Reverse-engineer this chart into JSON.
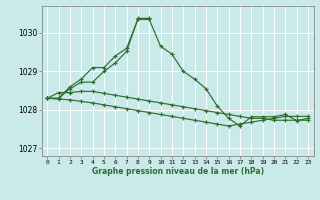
{
  "bg_color": "#caeaea",
  "grid_color": "#ffffff",
  "line_color": "#2d6e2d",
  "ylim": [
    1026.8,
    1030.7
  ],
  "xlim": [
    -0.5,
    23.5
  ],
  "yticks": [
    1027,
    1028,
    1029,
    1030
  ],
  "xticks": [
    0,
    1,
    2,
    3,
    4,
    5,
    6,
    7,
    8,
    9,
    10,
    11,
    12,
    13,
    14,
    15,
    16,
    17,
    18,
    19,
    20,
    21,
    22,
    23
  ],
  "series": [
    [
      1028.3,
      1028.3,
      1028.6,
      1028.8,
      1029.1,
      1029.1,
      1029.4,
      1029.6,
      1030.35,
      1030.35,
      1029.65,
      1029.45,
      1029.0,
      1028.8,
      1028.55,
      1028.1,
      1027.78,
      1027.58,
      1027.82,
      1027.82,
      1027.82,
      1027.88,
      1027.72,
      1027.78
    ],
    [
      1028.3,
      1028.3,
      1028.55,
      1028.72,
      1028.72,
      1029.0,
      1029.22,
      1029.52,
      1030.38,
      1030.38,
      null,
      null,
      null,
      null,
      null,
      null,
      null,
      null,
      null,
      null,
      null,
      null,
      null,
      null
    ],
    [
      1028.3,
      1028.45,
      1028.45,
      1028.48,
      1028.48,
      1028.43,
      1028.38,
      1028.33,
      1028.28,
      1028.23,
      1028.18,
      1028.13,
      1028.08,
      1028.03,
      1027.98,
      1027.93,
      1027.88,
      1027.83,
      1027.78,
      1027.78,
      1027.73,
      1027.73,
      1027.73,
      1027.73
    ],
    [
      1028.3,
      1028.28,
      1028.26,
      1028.22,
      1028.18,
      1028.13,
      1028.08,
      1028.03,
      1027.98,
      1027.93,
      1027.88,
      1027.83,
      1027.78,
      1027.73,
      1027.68,
      1027.63,
      1027.58,
      1027.63,
      1027.68,
      1027.73,
      1027.78,
      1027.83,
      1027.83,
      1027.83
    ]
  ],
  "xlabel": "Graphe pression niveau de la mer (hPa)"
}
